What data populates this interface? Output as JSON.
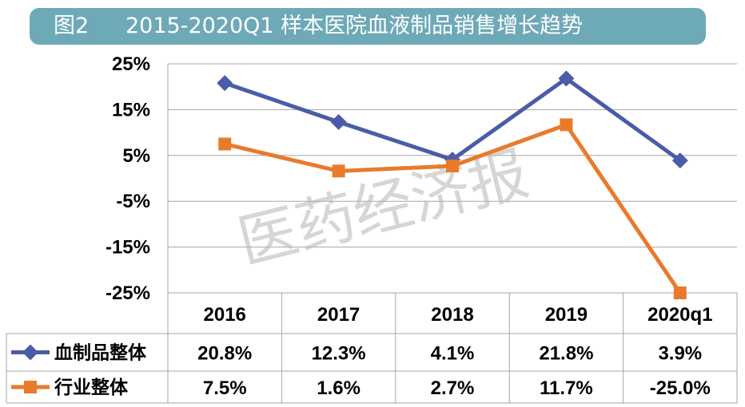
{
  "title": {
    "fig_label": "图2",
    "text": "2015-2020Q1 样本医院血液制品销售增长趋势",
    "background_color": "#6ea9b8"
  },
  "watermark": "医药经济报",
  "chart_data": {
    "type": "line",
    "categories": [
      "2016",
      "2017",
      "2018",
      "2019",
      "2020q1"
    ],
    "y_ticks": [
      "25%",
      "15%",
      "5%",
      "-5%",
      "-15%",
      "-25%"
    ],
    "ylim": [
      -25,
      25
    ],
    "grid": true,
    "legend_placement": "data-table-left",
    "series": [
      {
        "name": "血制品整体",
        "values": [
          20.8,
          12.3,
          4.1,
          21.8,
          3.9
        ],
        "labels": [
          "20.8%",
          "12.3%",
          "4.1%",
          "21.8%",
          "3.9%"
        ],
        "color": "#4a5ca8",
        "marker": "diamond"
      },
      {
        "name": "行业整体",
        "values": [
          7.5,
          1.6,
          2.7,
          11.7,
          -25.0
        ],
        "labels": [
          "7.5%",
          "1.6%",
          "2.7%",
          "11.7%",
          "-25.0%"
        ],
        "color": "#e97a2c",
        "marker": "square"
      }
    ]
  }
}
